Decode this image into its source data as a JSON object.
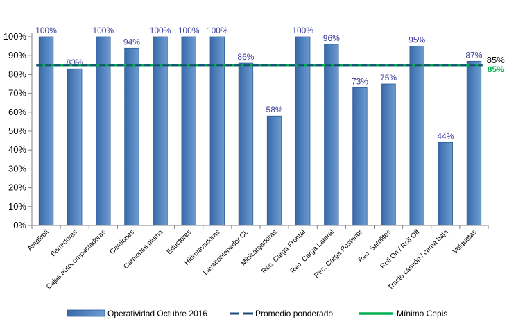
{
  "chart_data": {
    "type": "bar",
    "categories": [
      "Ampliroll",
      "Barredoras",
      "Cajas autocompactadoras",
      "Camiones",
      "Camiones pluma",
      "Eductores",
      "Hidrolavadoras",
      "Lavacontenedor CL",
      "Minicargadoras",
      "Rec. Carga Frontal",
      "Rec. Carga Lateral",
      "Rec. Carga Posterior",
      "Rec. Satelites",
      "Roll On / Roll Off",
      "Tracto camión / cama baja",
      "Volquetas"
    ],
    "series": [
      {
        "name": "Operatividad Octubre 2016",
        "kind": "bar",
        "color": "#4f81bd",
        "values": [
          100,
          83,
          100,
          94,
          100,
          100,
          100,
          86,
          58,
          100,
          96,
          73,
          75,
          95,
          44,
          87
        ],
        "data_labels": [
          "100%",
          "83%",
          "100%",
          "94%",
          "100%",
          "100%",
          "100%",
          "86%",
          "58%",
          "100%",
          "96%",
          "73%",
          "75%",
          "95%",
          "44%",
          "87%"
        ]
      },
      {
        "name": "Promedio ponderado",
        "kind": "dashed-line",
        "color": "#1f497d",
        "value": 85,
        "end_label": "85%"
      },
      {
        "name": "Mínimo Cepis",
        "kind": "line",
        "color": "#00b050",
        "value": 85,
        "end_label": "85%"
      }
    ],
    "yticks": [
      "0%",
      "10%",
      "20%",
      "30%",
      "40%",
      "50%",
      "60%",
      "70%",
      "80%",
      "90%",
      "100%"
    ],
    "ylim": [
      0,
      100
    ],
    "grid": false,
    "legend_position": "bottom"
  }
}
